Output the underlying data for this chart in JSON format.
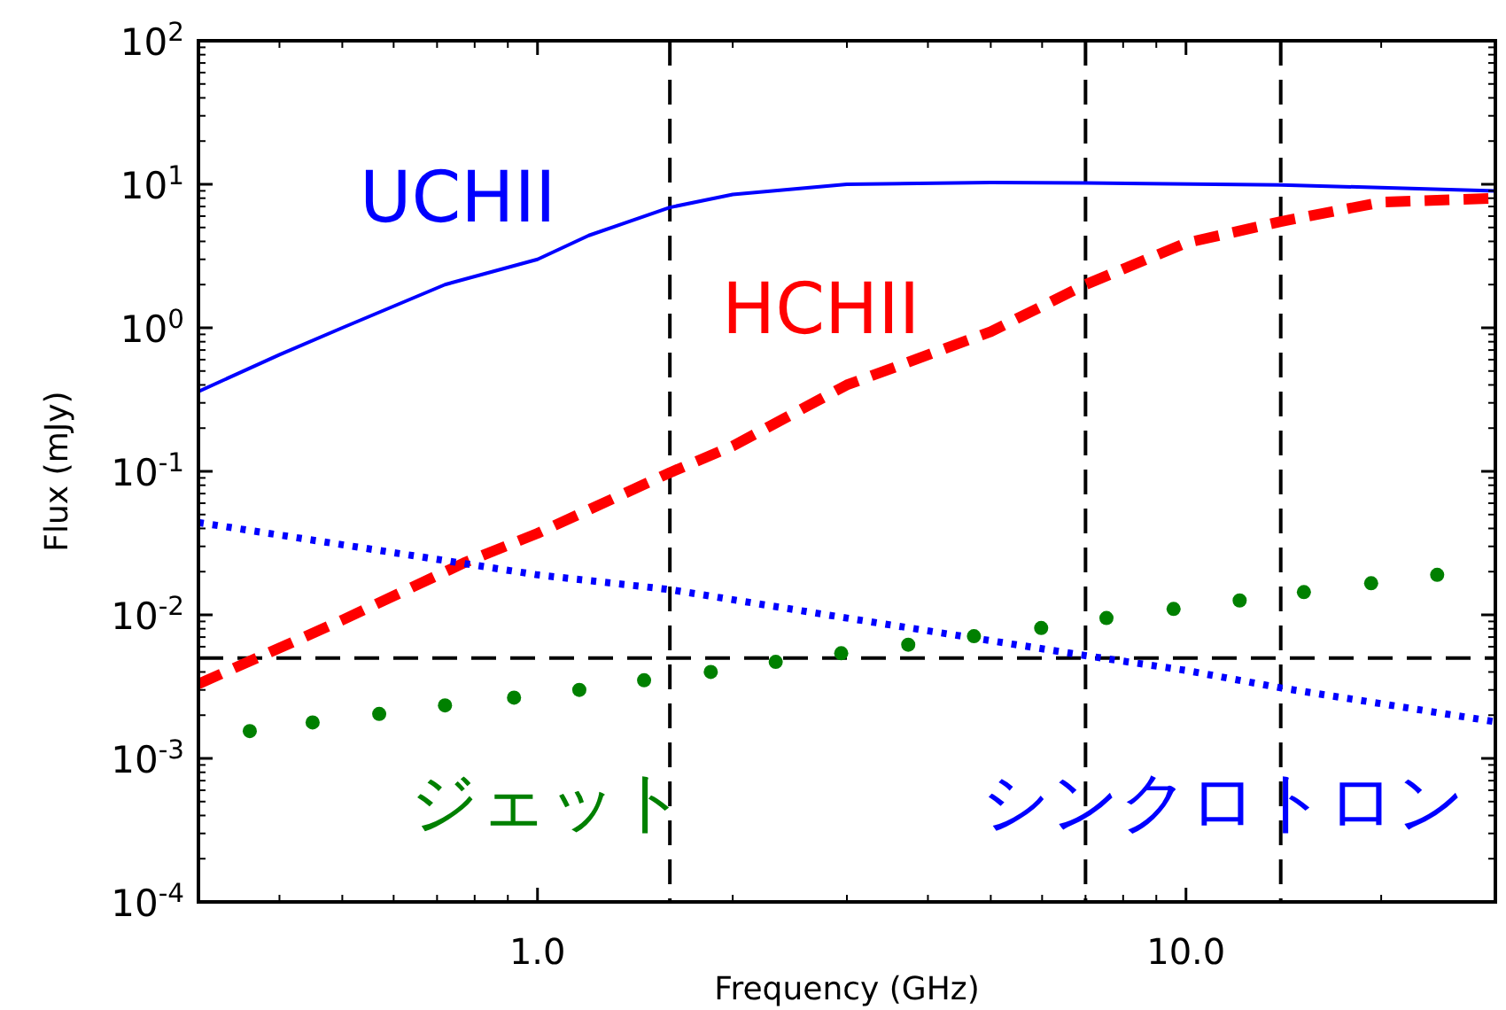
{
  "chart_data": {
    "type": "line",
    "xlabel": "Frequency (GHz)",
    "ylabel": "Flux (mJy)",
    "log": "xy",
    "xlim": [
      0.3,
      30
    ],
    "ylim": [
      0.0001,
      100
    ],
    "xticks": [
      {
        "value": 1,
        "label": "1.0"
      },
      {
        "value": 10,
        "label": "10.0"
      }
    ],
    "yticks": [
      {
        "value": 0.0001,
        "label": "10$^{-4}$"
      },
      {
        "value": 0.001,
        "label": "10$^{-3}$"
      },
      {
        "value": 0.01,
        "label": "10$^{-2}$"
      },
      {
        "value": 0.1,
        "label": "10$^{-1}$"
      },
      {
        "value": 1,
        "label": "10$^{0}$"
      },
      {
        "value": 10,
        "label": "10$^{1}$"
      },
      {
        "value": 100,
        "label": "10$^{2}$"
      }
    ],
    "series": [
      {
        "name": "UCHII",
        "type": "line",
        "line_style": "solid",
        "color": "#0000ff",
        "x": [
          0.3,
          0.4,
          0.5,
          0.72,
          1,
          1.2,
          1.6,
          2,
          3,
          5,
          7,
          14,
          30
        ],
        "values": [
          0.36,
          0.65,
          1.0,
          2.0,
          3.0,
          4.4,
          6.9,
          8.5,
          10,
          10.3,
          10.2,
          9.9,
          9.0
        ]
      },
      {
        "name": "HCHII",
        "type": "line",
        "line_style": "dashed",
        "color": "#ff0000",
        "x": [
          0.3,
          0.5,
          0.77,
          1,
          1.6,
          2,
          3,
          5,
          7,
          10,
          14,
          20,
          30
        ],
        "values": [
          0.0033,
          0.0092,
          0.023,
          0.037,
          0.098,
          0.15,
          0.4,
          0.94,
          2.0,
          3.9,
          5.5,
          7.5,
          8.0
        ]
      },
      {
        "name": "シンクロトロン",
        "type": "line",
        "line_style": "dotted",
        "color": "#0000ff",
        "x": [
          0.3,
          1,
          1.6,
          3,
          7,
          10,
          14,
          30
        ],
        "values": [
          0.044,
          0.019,
          0.015,
          0.0095,
          0.0052,
          0.0041,
          0.0031,
          0.0018
        ]
      },
      {
        "name": "ジェット",
        "type": "scatter",
        "marker": "circle",
        "color": "#008000",
        "x": [
          0.36,
          0.45,
          0.57,
          0.72,
          0.92,
          1.16,
          1.46,
          1.85,
          2.33,
          2.94,
          3.73,
          4.71,
          5.98,
          7.54,
          9.57,
          12.1,
          15.2,
          19.3,
          24.4
        ],
        "values": [
          0.00155,
          0.00178,
          0.00204,
          0.00234,
          0.00265,
          0.003,
          0.0035,
          0.004,
          0.0047,
          0.0054,
          0.0062,
          0.0071,
          0.0081,
          0.0095,
          0.011,
          0.0126,
          0.0144,
          0.0166,
          0.019
        ]
      }
    ],
    "ref_lines": [
      {
        "axis": "x",
        "value": 1.6,
        "color": "#000000",
        "line_style": "dashed"
      },
      {
        "axis": "x",
        "value": 7,
        "color": "#000000",
        "line_style": "dashed"
      },
      {
        "axis": "x",
        "value": 14,
        "color": "#000000",
        "line_style": "dashed"
      },
      {
        "axis": "y",
        "value": 0.005,
        "color": "#000000",
        "line_style": "dashed"
      }
    ]
  }
}
